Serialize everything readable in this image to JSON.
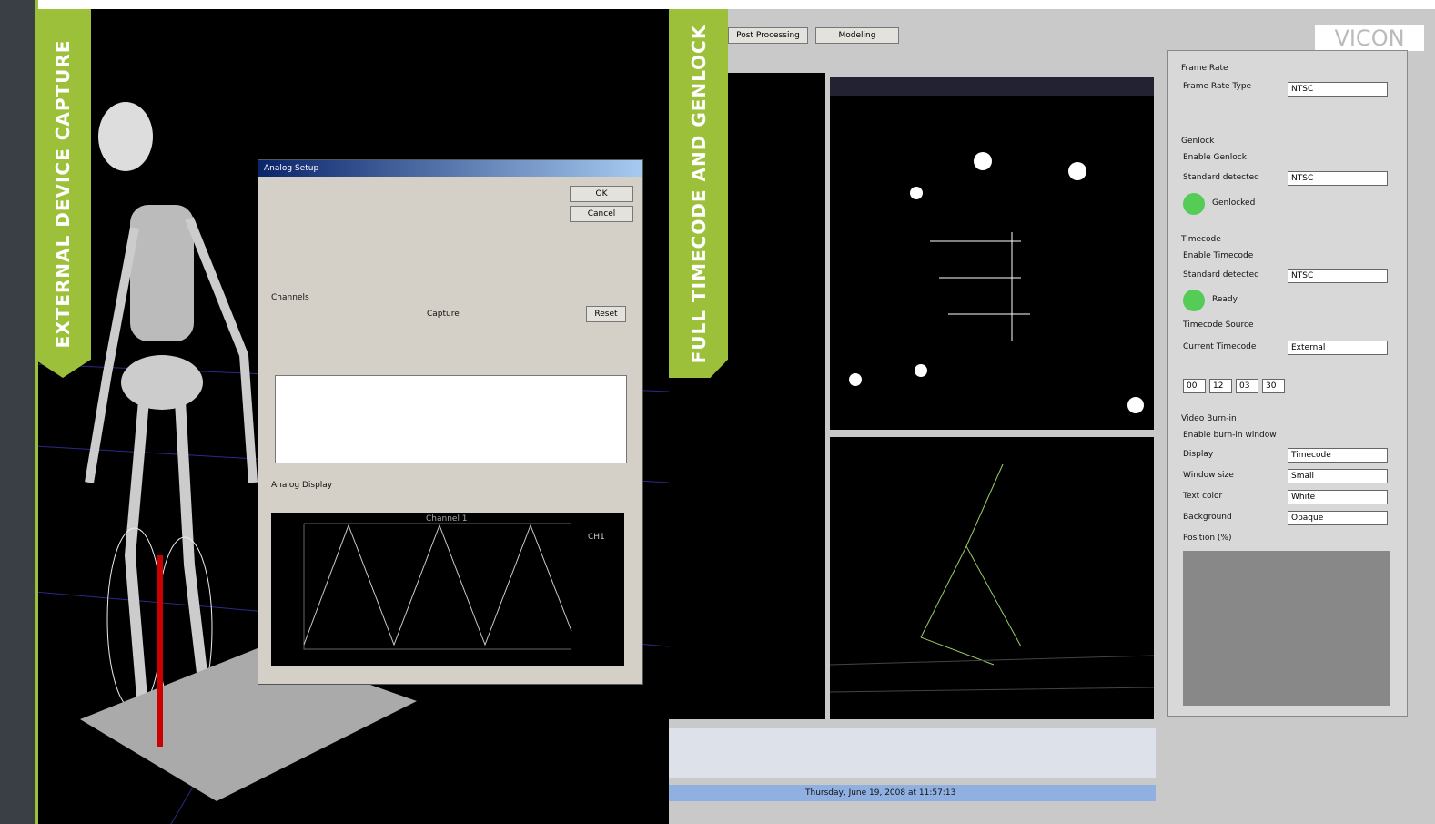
{
  "left_panel": {
    "banner": "EXTERNAL DEVICE CAPTURE",
    "dialog": {
      "title": "Analog Setup",
      "ok": "OK",
      "cancel": "Cancel",
      "channels": "Channels",
      "capture": "Capture",
      "reset": "Reset",
      "analog_display": "Analog Display",
      "chart_title": "Channel 1",
      "legend": "CH1"
    }
  },
  "right_panel": {
    "banner": "FULL TIMECODE AND GENLOCK",
    "tabs": [
      "Post Processing",
      "Modeling"
    ],
    "logo": "VICON",
    "frame_rate": {
      "group": "Frame Rate",
      "type_label": "Frame Rate Type",
      "type_value": "NTSC"
    },
    "genlock": {
      "group": "Genlock",
      "enable": "Enable Genlock",
      "standard_label": "Standard detected",
      "standard_value": "NTSC",
      "status": "Genlocked"
    },
    "timecode": {
      "group": "Timecode",
      "enable": "Enable Timecode",
      "standard_label": "Standard detected",
      "standard_value": "NTSC",
      "status": "Ready",
      "source_label": "Timecode Source",
      "current_label": "Current Timecode",
      "current_value": "External",
      "fields": [
        "00",
        "12",
        "03",
        "30"
      ]
    },
    "burn_in": {
      "group": "Video Burn-in",
      "enable": "Enable burn-in window",
      "display_label": "Display",
      "display_value": "Timecode",
      "size_label": "Window size",
      "size_value": "Small",
      "color_label": "Text color",
      "color_value": "White",
      "bg_label": "Background",
      "bg_value": "Opaque",
      "position_label": "Position (%)"
    },
    "status_date": "Thursday, June 19, 2008 at 11:57:13"
  }
}
